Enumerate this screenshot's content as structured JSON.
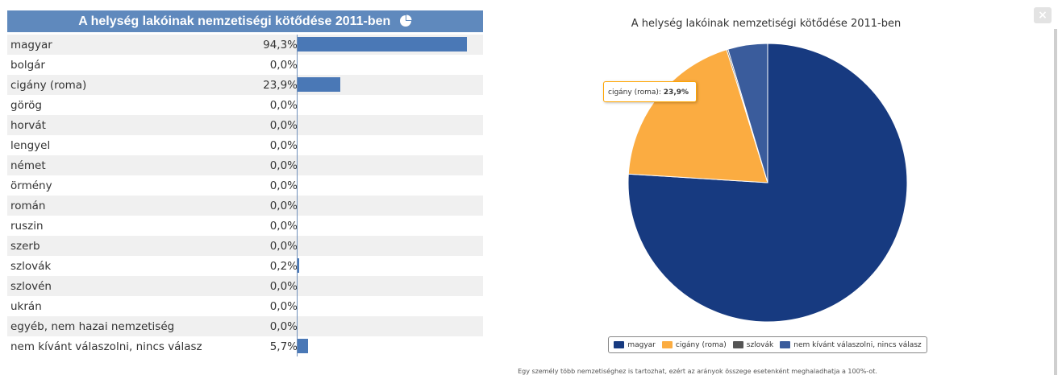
{
  "table": {
    "title": "A helység lakóinak nemzetiségi kötődése 2011-ben",
    "rows": [
      {
        "name": "magyar",
        "percent": "94,3%",
        "value": 94.3
      },
      {
        "name": "bolgár",
        "percent": "0,0%",
        "value": 0.0
      },
      {
        "name": "cigány (roma)",
        "percent": "23,9%",
        "value": 23.9
      },
      {
        "name": "görög",
        "percent": "0,0%",
        "value": 0.0
      },
      {
        "name": "horvát",
        "percent": "0,0%",
        "value": 0.0
      },
      {
        "name": "lengyel",
        "percent": "0,0%",
        "value": 0.0
      },
      {
        "name": "német",
        "percent": "0,0%",
        "value": 0.0
      },
      {
        "name": "örmény",
        "percent": "0,0%",
        "value": 0.0
      },
      {
        "name": "román",
        "percent": "0,0%",
        "value": 0.0
      },
      {
        "name": "ruszin",
        "percent": "0,0%",
        "value": 0.0
      },
      {
        "name": "szerb",
        "percent": "0,0%",
        "value": 0.0
      },
      {
        "name": "szlovák",
        "percent": "0,2%",
        "value": 0.2
      },
      {
        "name": "szlovén",
        "percent": "0,0%",
        "value": 0.0
      },
      {
        "name": "ukrán",
        "percent": "0,0%",
        "value": 0.0
      },
      {
        "name": "egyéb, nem hazai nemzetiség",
        "percent": "0,0%",
        "value": 0.0
      },
      {
        "name": "nem kívánt válaszolni, nincs válasz",
        "percent": "5,7%",
        "value": 5.7
      }
    ]
  },
  "chart_data": {
    "type": "pie",
    "title": "A helység lakóinak nemzetiségi kötődése 2011-ben",
    "slices": [
      {
        "name": "magyar",
        "value": 94.3,
        "color": "#173a80"
      },
      {
        "name": "cigány (roma)",
        "value": 23.9,
        "color": "#fbac41"
      },
      {
        "name": "szlovák",
        "value": 0.2,
        "color": "#555555"
      },
      {
        "name": "nem kívánt válaszolni, nincs válasz",
        "value": 5.7,
        "color": "#3a5c9c"
      }
    ],
    "legend_position": "bottom",
    "tooltip": {
      "label": "cigány (roma)",
      "value": "23,9%"
    }
  },
  "footnote": "Egy személy több nemzetiséghez is tartozhat, ezért az arányok összege esetenként meghaladhatja a 100%-ot.",
  "close_label": "×",
  "colors": {
    "header_bg": "#5f89bd",
    "bar": "#4a78b6",
    "row_alt": "#f0f0f0"
  }
}
